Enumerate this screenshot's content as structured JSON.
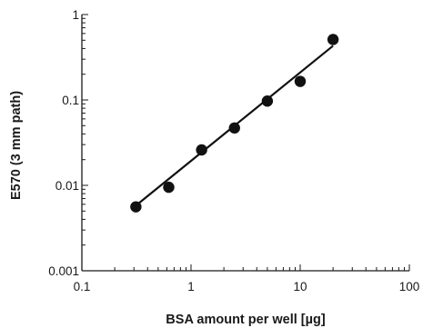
{
  "chart_data": {
    "type": "scatter",
    "xscale": "log",
    "yscale": "log",
    "xlim": [
      0.1,
      100
    ],
    "ylim": [
      0.001,
      1
    ],
    "xlabel": "BSA amount per well [µg]",
    "ylabel": "E570 (3 mm path)",
    "x_ticks": [
      {
        "value": 0.1,
        "label": "0.1"
      },
      {
        "value": 1,
        "label": "1"
      },
      {
        "value": 10,
        "label": "10"
      },
      {
        "value": 100,
        "label": "100"
      }
    ],
    "y_ticks": [
      {
        "value": 0.001,
        "label": "0.001"
      },
      {
        "value": 0.01,
        "label": "0.01"
      },
      {
        "value": 0.1,
        "label": "0.1"
      },
      {
        "value": 1,
        "label": "1"
      }
    ],
    "points": [
      {
        "x": 0.3125,
        "y": 0.0056
      },
      {
        "x": 0.625,
        "y": 0.0095
      },
      {
        "x": 1.25,
        "y": 0.026
      },
      {
        "x": 2.5,
        "y": 0.047
      },
      {
        "x": 5,
        "y": 0.097
      },
      {
        "x": 10,
        "y": 0.165
      },
      {
        "x": 20,
        "y": 0.51
      }
    ],
    "fit_line": {
      "x": [
        0.3125,
        20
      ],
      "y": [
        0.0058,
        0.43
      ]
    },
    "grid": false,
    "legend": "none",
    "marker_color": "#111111",
    "line_color": "#111111"
  }
}
